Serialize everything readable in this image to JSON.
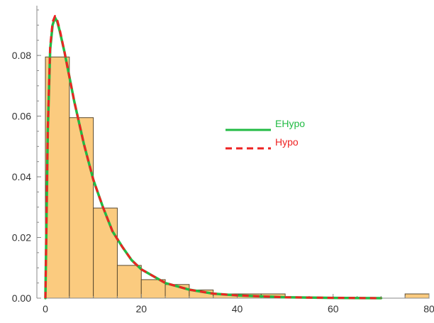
{
  "chart_data": {
    "type": "histogram",
    "title": "",
    "xlabel": "",
    "ylabel": "",
    "xlim": [
      0,
      80
    ],
    "ylim": [
      0,
      0.095
    ],
    "x_ticks": [
      0,
      20,
      40,
      60,
      80
    ],
    "x_tick_labels": [
      "0",
      "20",
      "40",
      "60",
      "80"
    ],
    "y_ticks": [
      0.0,
      0.02,
      0.04,
      0.06,
      0.08
    ],
    "y_tick_labels": [
      "0.00",
      "0.02",
      "0.04",
      "0.06",
      "0.08"
    ],
    "grid": false,
    "legend_placement": "right-center",
    "colors": {
      "bar_fill": "#FBCB7F",
      "bar_stroke": "#5a4a30",
      "ehypo": "#22bb44",
      "hypo": "#ee2222",
      "axis": "#888888"
    },
    "histogram": {
      "bins": [
        {
          "x0": 0,
          "x1": 5,
          "value": 0.0795
        },
        {
          "x0": 5,
          "x1": 10,
          "value": 0.0595
        },
        {
          "x0": 10,
          "x1": 15,
          "value": 0.0297
        },
        {
          "x0": 15,
          "x1": 20,
          "value": 0.0108
        },
        {
          "x0": 20,
          "x1": 25,
          "value": 0.0061
        },
        {
          "x0": 25,
          "x1": 30,
          "value": 0.0045
        },
        {
          "x0": 30,
          "x1": 35,
          "value": 0.0027
        },
        {
          "x0": 35,
          "x1": 40,
          "value": 0.0014
        },
        {
          "x0": 40,
          "x1": 45,
          "value": 0.0014
        },
        {
          "x0": 45,
          "x1": 50,
          "value": 0.0014
        },
        {
          "x0": 75,
          "x1": 80,
          "value": 0.0014
        }
      ]
    },
    "series": [
      {
        "name": "EHypo",
        "style": "solid",
        "x": [
          0,
          0.5,
          1,
          1.5,
          2,
          2.5,
          3,
          4,
          5,
          6,
          7,
          8,
          10,
          12,
          14,
          16,
          18,
          20,
          25,
          30,
          35,
          40,
          50,
          60,
          70
        ],
        "y": [
          0,
          0.055,
          0.082,
          0.09,
          0.0925,
          0.091,
          0.088,
          0.081,
          0.073,
          0.065,
          0.058,
          0.051,
          0.039,
          0.03,
          0.022,
          0.017,
          0.0125,
          0.0095,
          0.005,
          0.0028,
          0.0015,
          0.0009,
          0.0003,
          0.0001,
          0.0
        ]
      },
      {
        "name": "Hypo",
        "style": "dashed",
        "x": [
          0,
          0.5,
          1,
          1.5,
          2,
          2.5,
          3,
          4,
          5,
          6,
          7,
          8,
          10,
          12,
          14,
          16,
          18,
          20,
          25,
          30,
          35,
          40,
          50,
          60,
          70
        ],
        "y": [
          0,
          0.056,
          0.083,
          0.091,
          0.093,
          0.0915,
          0.0885,
          0.081,
          0.073,
          0.065,
          0.058,
          0.051,
          0.039,
          0.03,
          0.022,
          0.017,
          0.0125,
          0.0095,
          0.005,
          0.0028,
          0.0015,
          0.0009,
          0.0003,
          0.0001,
          0.0
        ]
      }
    ]
  }
}
